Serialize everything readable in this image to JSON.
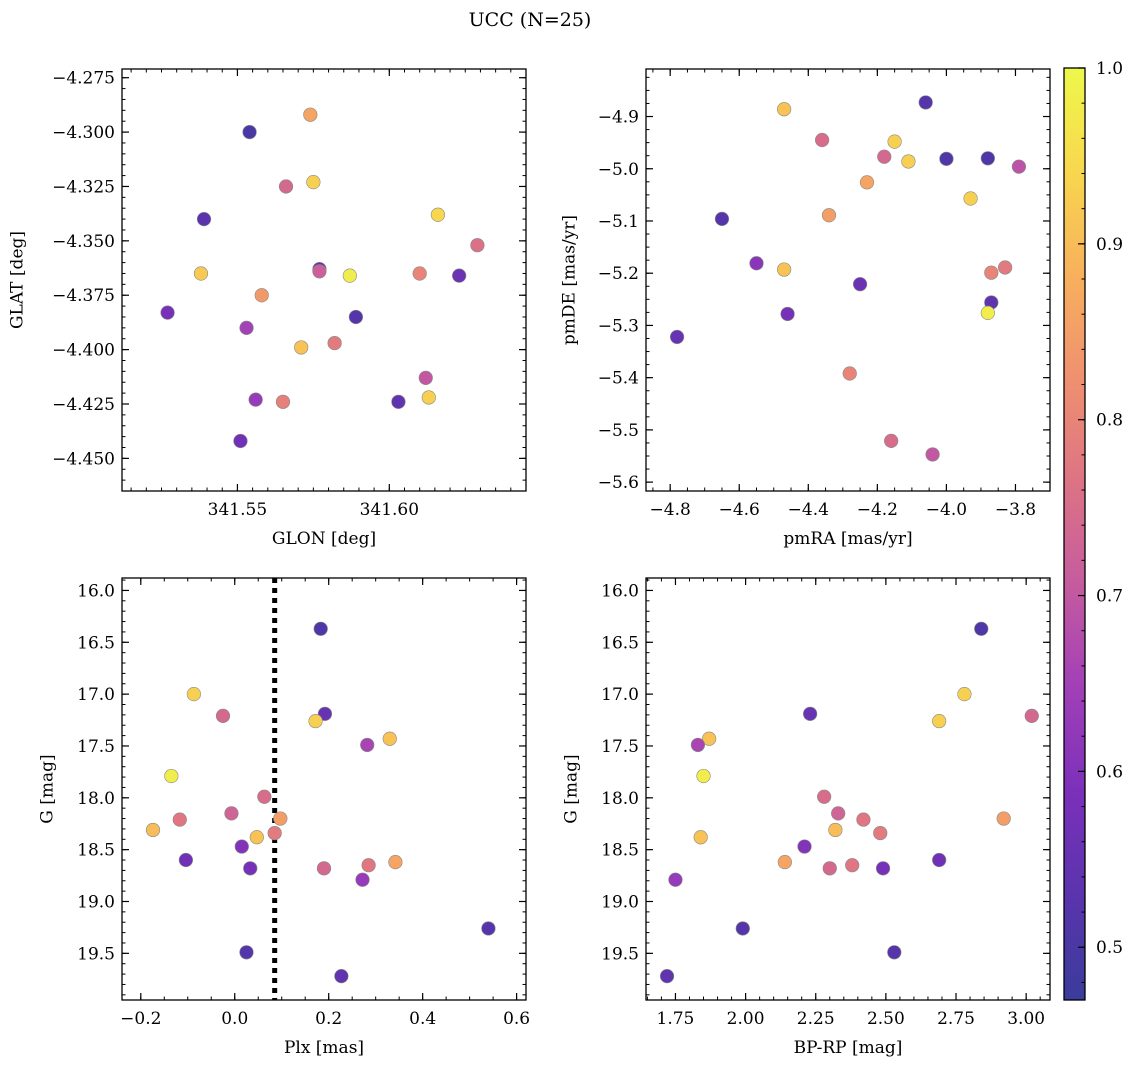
{
  "figure": {
    "title": "UCC (N=25)"
  },
  "colormap": {
    "name": "plasma",
    "range": [
      0.47,
      1.0
    ],
    "stops": [
      "#3a3c9b",
      "#5a34ad",
      "#7b30ba",
      "#a13fb8",
      "#c55b9f",
      "#dd7384",
      "#ef9070",
      "#f8b05c",
      "#f8d74e",
      "#eef84b"
    ],
    "tick_values": [
      0.5,
      0.6,
      0.7,
      0.8,
      0.9,
      1.0
    ],
    "tick_labels": [
      "0.5",
      "0.6",
      "0.7",
      "0.8",
      "0.9",
      "1.0"
    ]
  },
  "chart_data": [
    {
      "type": "scatter",
      "id": "glon-glat",
      "title": "",
      "xlabel": "GLON [deg]",
      "ylabel": "GLAT [deg]",
      "xlim": [
        341.512,
        341.645
      ],
      "ylim": [
        -4.465,
        -4.271
      ],
      "xticks": [
        341.55,
        341.6
      ],
      "xtick_labels": [
        "341.55",
        "341.60"
      ],
      "yticks": [
        -4.275,
        -4.3,
        -4.325,
        -4.35,
        -4.375,
        -4.4,
        -4.425,
        -4.45
      ],
      "ytick_labels": [
        "−4.275",
        "−4.300",
        "−4.325",
        "−4.350",
        "−4.375",
        "−4.400",
        "−4.425",
        "−4.450"
      ],
      "x_minor_step": 0.005,
      "y_minor_step": 0.005,
      "grid": false,
      "x": [
        341.554,
        341.574,
        341.566,
        341.575,
        341.539,
        341.616,
        341.629,
        341.538,
        341.577,
        341.587,
        341.61,
        341.623,
        341.558,
        341.527,
        341.589,
        341.553,
        341.571,
        341.582,
        341.612,
        341.613,
        341.556,
        341.565,
        341.603,
        341.551,
        341.577
      ],
      "y": [
        -4.3,
        -4.292,
        -4.325,
        -4.323,
        -4.34,
        -4.338,
        -4.352,
        -4.365,
        -4.363,
        -4.366,
        -4.365,
        -4.366,
        -4.375,
        -4.383,
        -4.385,
        -4.39,
        -4.399,
        -4.397,
        -4.413,
        -4.422,
        -4.423,
        -4.424,
        -4.424,
        -4.442,
        -4.364
      ],
      "c": [
        0.5,
        0.86,
        0.74,
        0.93,
        0.53,
        0.94,
        0.76,
        0.92,
        0.53,
        0.98,
        0.8,
        0.56,
        0.84,
        0.58,
        0.52,
        0.65,
        0.91,
        0.78,
        0.7,
        0.93,
        0.63,
        0.79,
        0.54,
        0.57,
        0.72
      ]
    },
    {
      "type": "scatter",
      "id": "pmra-pmde",
      "title": "",
      "xlabel": "pmRA [mas/yr]",
      "ylabel": "pmDE [mas/yr]",
      "xlim": [
        -4.87,
        -3.7
      ],
      "ylim": [
        -5.617,
        -4.809
      ],
      "xticks": [
        -4.8,
        -4.6,
        -4.4,
        -4.2,
        -4.0,
        -3.8
      ],
      "xtick_labels": [
        "−4.8",
        "−4.6",
        "−4.4",
        "−4.2",
        "−4.0",
        "−3.8"
      ],
      "yticks": [
        -4.9,
        -5.0,
        -5.1,
        -5.2,
        -5.3,
        -5.4,
        -5.5,
        -5.6
      ],
      "ytick_labels": [
        "−4.9",
        "−5.0",
        "−5.1",
        "−5.2",
        "−5.3",
        "−5.4",
        "−5.5",
        "−5.6"
      ],
      "x_minor_step": 0.05,
      "y_minor_step": 0.025,
      "grid": false,
      "x": [
        -4.06,
        -4.47,
        -4.36,
        -4.15,
        -4.18,
        -4.11,
        -4.0,
        -3.88,
        -3.79,
        -4.23,
        -4.34,
        -4.65,
        -3.93,
        -4.55,
        -4.47,
        -3.83,
        -3.87,
        -4.25,
        -3.87,
        -4.46,
        -3.88,
        -4.78,
        -4.28,
        -4.16,
        -4.04
      ],
      "y": [
        -4.873,
        -4.886,
        -4.945,
        -4.948,
        -4.977,
        -4.986,
        -4.981,
        -4.98,
        -4.996,
        -5.026,
        -5.089,
        -5.096,
        -5.057,
        -5.181,
        -5.193,
        -5.189,
        -5.199,
        -5.221,
        -5.256,
        -5.278,
        -5.276,
        -5.322,
        -5.392,
        -5.521,
        -5.547
      ],
      "c": [
        0.52,
        0.91,
        0.75,
        0.93,
        0.74,
        0.93,
        0.51,
        0.51,
        0.69,
        0.86,
        0.85,
        0.52,
        0.93,
        0.61,
        0.91,
        0.78,
        0.8,
        0.56,
        0.54,
        0.58,
        0.98,
        0.55,
        0.8,
        0.75,
        0.7
      ]
    },
    {
      "type": "scatter",
      "id": "plx-g",
      "title": "",
      "xlabel": "Plx [mas]",
      "ylabel": "G [mag]",
      "xlim": [
        -0.24,
        0.62
      ],
      "ylim": [
        19.95,
        15.88
      ],
      "xticks": [
        -0.2,
        0.0,
        0.2,
        0.4,
        0.6
      ],
      "xtick_labels": [
        "−0.2",
        "0.0",
        "0.2",
        "0.4",
        "0.6"
      ],
      "yticks": [
        16.0,
        16.5,
        17.0,
        17.5,
        18.0,
        18.5,
        19.0,
        19.5
      ],
      "ytick_labels": [
        "16.0",
        "16.5",
        "17.0",
        "17.5",
        "18.0",
        "18.5",
        "19.0",
        "19.5"
      ],
      "x_minor_step": 0.05,
      "y_minor_step": 0.1,
      "grid": false,
      "vline": {
        "x": 0.085,
        "style": "dotted"
      },
      "x": [
        0.183,
        -0.087,
        0.192,
        -0.025,
        0.172,
        0.33,
        0.282,
        -0.135,
        0.063,
        -0.007,
        0.097,
        -0.117,
        -0.174,
        0.047,
        0.085,
        0.015,
        -0.104,
        0.033,
        0.19,
        0.285,
        0.342,
        0.272,
        0.54,
        0.025,
        0.227
      ],
      "y": [
        16.37,
        17.0,
        17.19,
        17.21,
        17.26,
        17.43,
        17.49,
        17.79,
        17.99,
        18.15,
        18.2,
        18.21,
        18.31,
        18.38,
        18.34,
        18.47,
        18.6,
        18.68,
        18.68,
        18.65,
        18.62,
        18.79,
        19.26,
        19.49,
        19.72
      ],
      "c": [
        0.51,
        0.93,
        0.55,
        0.74,
        0.93,
        0.91,
        0.66,
        0.98,
        0.75,
        0.73,
        0.85,
        0.77,
        0.9,
        0.91,
        0.78,
        0.6,
        0.57,
        0.58,
        0.74,
        0.77,
        0.86,
        0.63,
        0.52,
        0.52,
        0.54
      ]
    },
    {
      "type": "scatter",
      "id": "bprp-g",
      "title": "",
      "xlabel": "BP-RP [mag]",
      "ylabel": "G [mag]",
      "xlim": [
        1.645,
        3.085
      ],
      "ylim": [
        19.95,
        15.88
      ],
      "xticks": [
        1.75,
        2.0,
        2.25,
        2.5,
        2.75,
        3.0
      ],
      "xtick_labels": [
        "1.75",
        "2.00",
        "2.25",
        "2.50",
        "2.75",
        "3.00"
      ],
      "yticks": [
        16.0,
        16.5,
        17.0,
        17.5,
        18.0,
        18.5,
        19.0,
        19.5
      ],
      "ytick_labels": [
        "16.0",
        "16.5",
        "17.0",
        "17.5",
        "18.0",
        "18.5",
        "19.0",
        "19.5"
      ],
      "x_minor_step": 0.05,
      "y_minor_step": 0.1,
      "grid": false,
      "x": [
        2.84,
        2.78,
        2.23,
        3.02,
        2.69,
        1.87,
        1.83,
        1.85,
        2.28,
        2.33,
        2.92,
        2.42,
        2.32,
        1.84,
        2.48,
        2.21,
        2.69,
        2.14,
        2.3,
        2.38,
        2.49,
        1.75,
        1.99,
        2.53,
        1.72
      ],
      "y": [
        16.37,
        17.0,
        17.19,
        17.21,
        17.26,
        17.43,
        17.49,
        17.79,
        17.99,
        18.15,
        18.2,
        18.21,
        18.31,
        18.38,
        18.34,
        18.47,
        18.6,
        18.62,
        18.68,
        18.65,
        18.68,
        18.79,
        19.26,
        19.49,
        19.72
      ],
      "c": [
        0.51,
        0.93,
        0.55,
        0.74,
        0.93,
        0.91,
        0.66,
        0.98,
        0.75,
        0.73,
        0.85,
        0.77,
        0.9,
        0.91,
        0.78,
        0.6,
        0.57,
        0.86,
        0.74,
        0.77,
        0.58,
        0.63,
        0.52,
        0.52,
        0.54
      ]
    }
  ]
}
